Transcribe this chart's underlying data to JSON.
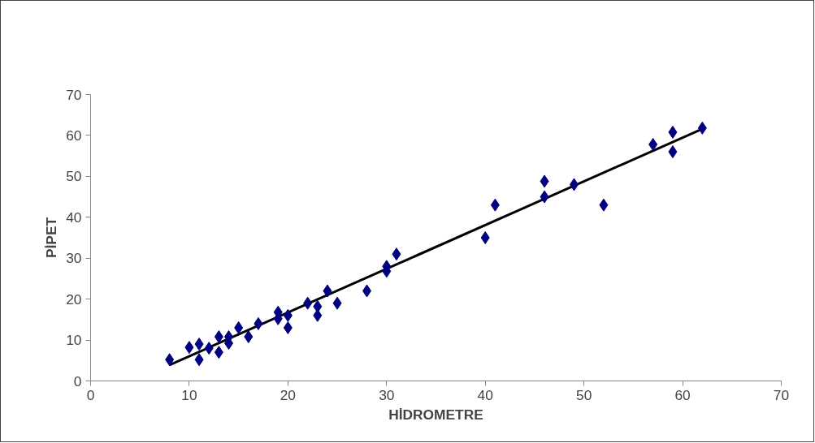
{
  "chart_data": {
    "type": "scatter",
    "xlabel": "HİDROMETRE",
    "ylabel": "PİPET",
    "xlim": [
      0,
      70
    ],
    "ylim": [
      0,
      70
    ],
    "xticks": [
      0,
      10,
      20,
      30,
      40,
      50,
      60,
      70
    ],
    "yticks": [
      0,
      10,
      20,
      30,
      40,
      50,
      60,
      70
    ],
    "grid": false,
    "series": [
      {
        "marker": "diamond",
        "color": "#000080",
        "x": [
          8,
          10,
          11,
          11,
          12,
          13,
          13,
          14,
          14,
          15,
          16,
          17,
          19,
          19,
          20,
          20,
          22,
          23,
          23,
          24,
          25,
          28,
          30,
          30,
          31,
          40,
          41,
          46,
          46,
          49,
          52,
          57,
          59,
          59,
          62
        ],
        "values": [
          5.2,
          8.2,
          9,
          5.2,
          8,
          10.8,
          7,
          10.8,
          9.2,
          13,
          10.8,
          14,
          16.8,
          15.2,
          16,
          13,
          19,
          18.2,
          16,
          22,
          19,
          22,
          28,
          26.8,
          31,
          35,
          43,
          48.8,
          45,
          48,
          43,
          57.8,
          60.8,
          56,
          61.8
        ]
      },
      {
        "type": "line",
        "marker": "none",
        "color": "#000000",
        "x": [
          8,
          62
        ],
        "values": [
          3.9,
          61.6
        ]
      }
    ]
  }
}
